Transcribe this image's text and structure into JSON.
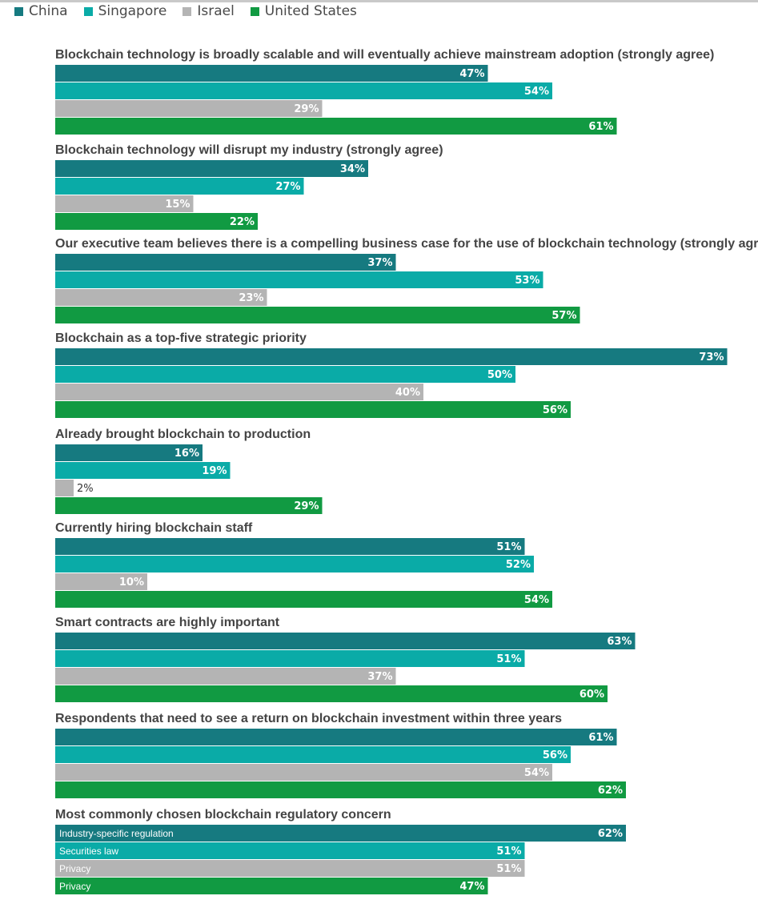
{
  "legend": {
    "position": "top-left",
    "items": [
      {
        "label": "China",
        "color": "#167a80"
      },
      {
        "label": "Singapore",
        "color": "#0aaba7"
      },
      {
        "label": "Israel",
        "color": "#b4b4b4"
      },
      {
        "label": "United States",
        "color": "#119a42"
      }
    ]
  },
  "chart_data": {
    "type": "bar",
    "orientation": "horizontal",
    "unit": "%",
    "xlim": [
      0,
      73
    ],
    "grid": false,
    "series": [
      {
        "name": "China",
        "color": "#167a80",
        "values": [
          47,
          34,
          37,
          73,
          16,
          51,
          63,
          61,
          62
        ]
      },
      {
        "name": "Singapore",
        "color": "#0aaba7",
        "values": [
          54,
          27,
          53,
          50,
          19,
          52,
          51,
          56,
          51
        ]
      },
      {
        "name": "Israel",
        "color": "#b4b4b4",
        "values": [
          29,
          15,
          23,
          40,
          2,
          10,
          37,
          54,
          51
        ]
      },
      {
        "name": "United States",
        "color": "#119a42",
        "values": [
          61,
          22,
          57,
          56,
          29,
          54,
          60,
          62,
          47
        ]
      }
    ],
    "categories": [
      "Blockchain technology is broadly scalable and will eventually achieve mainstream adoption (strongly agree)",
      "Blockchain technology will disrupt my industry (strongly agree)",
      "Our executive team believes there is a compelling business case for the use of blockchain technology (strongly agree)",
      "Blockchain as a top-five strategic priority",
      "Already brought blockchain to production",
      "Currently hiring blockchain staff",
      "Smart contracts are highly important",
      "Respondents that need to see a return on blockchain investment within three years",
      "Most commonly chosen blockchain regulatory concern"
    ],
    "annotations": [
      {
        "group": 8,
        "series": "China",
        "text": "Industry-specific regulation"
      },
      {
        "group": 8,
        "series": "Singapore",
        "text": "Securities law"
      },
      {
        "group": 8,
        "series": "Israel",
        "text": "Privacy"
      },
      {
        "group": 8,
        "series": "United States",
        "text": "Privacy"
      }
    ]
  }
}
